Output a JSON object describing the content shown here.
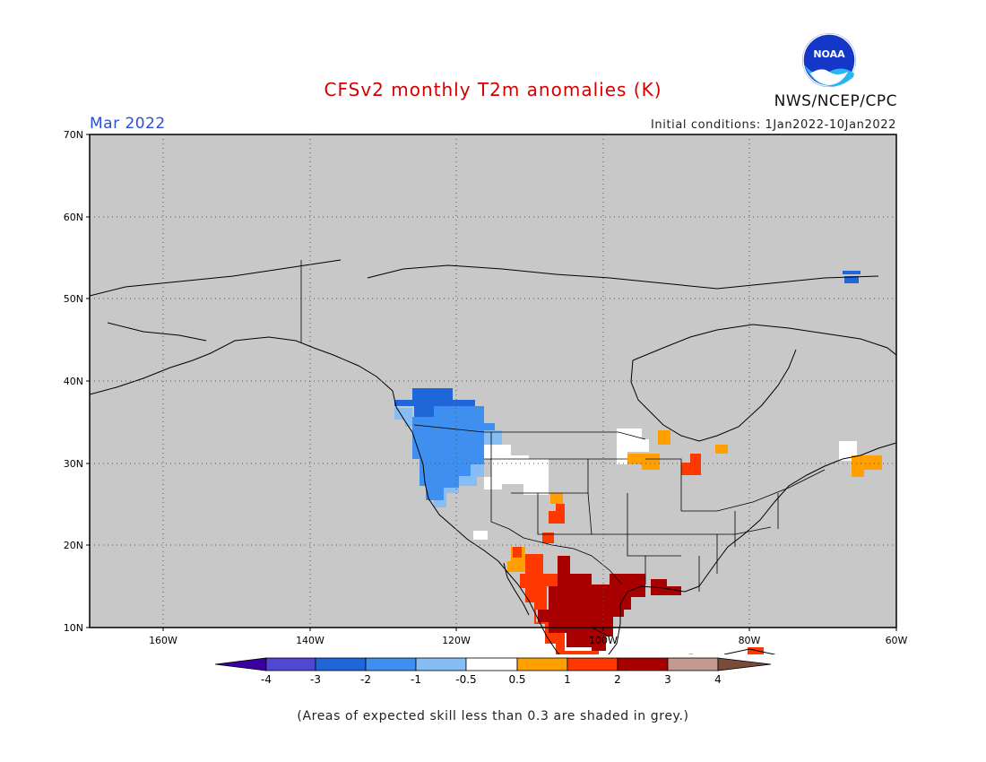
{
  "header": {
    "title": "CFSv2 monthly T2m anomalies (K)",
    "month": "Mar 2022",
    "initial_conditions": "Initial conditions: 1Jan2022-10Jan2022",
    "agency": "NWS/NCEP/CPC",
    "logo_text": "NOAA"
  },
  "map": {
    "lon_range": [
      -170,
      -60
    ],
    "lat_range": [
      10,
      70
    ],
    "lat_labels": [
      "70N",
      "60N",
      "50N",
      "40N",
      "30N",
      "20N",
      "10N"
    ],
    "lon_labels": [
      "160W",
      "140W",
      "120W",
      "100W",
      "80W",
      "60W"
    ],
    "background": "#c8c8c8"
  },
  "legend": {
    "labels": [
      "-4",
      "-3",
      "-2",
      "-1",
      "-0.5",
      "0.5",
      "1",
      "2",
      "3",
      "4"
    ],
    "colors": [
      "#3a00a0",
      "#5048d2",
      "#1f66d9",
      "#3f8ff0",
      "#86bdf4",
      "#ffffff",
      "#ffa000",
      "#ff3800",
      "#a80000",
      "#c39a8f",
      "#7a4a3a"
    ]
  },
  "note": "(Areas of expected skill less than 0.3 are shaded in grey.)"
}
